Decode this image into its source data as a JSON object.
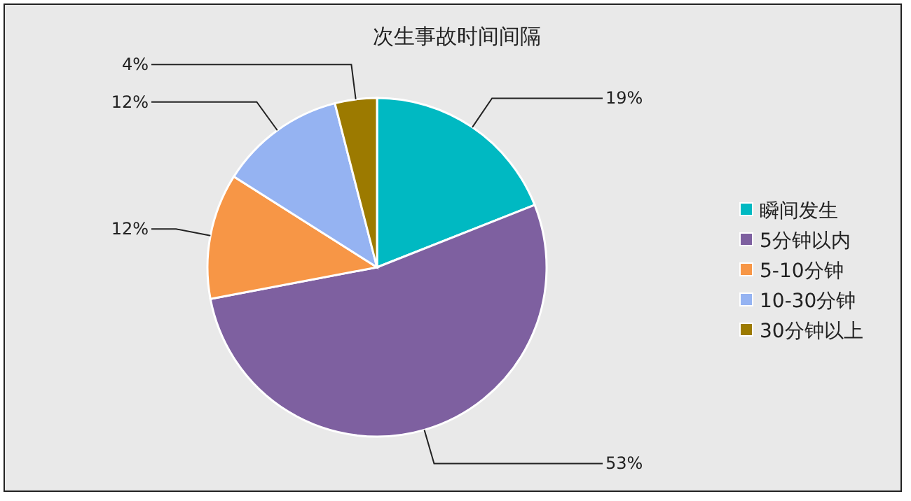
{
  "chart_data": {
    "type": "pie",
    "title": "次生事故时间间隔",
    "categories": [
      "瞬间发生",
      "5分钟以内",
      "5-10分钟",
      "10-30分钟",
      "30分钟以上"
    ],
    "values": [
      19,
      53,
      12,
      12,
      4
    ],
    "colors": [
      "#00b9c2",
      "#7e60a0",
      "#f79646",
      "#95b3f2",
      "#9c7a00"
    ],
    "value_labels": [
      "19%",
      "53%",
      "12%",
      "12%",
      "4%"
    ],
    "legend": "right"
  }
}
